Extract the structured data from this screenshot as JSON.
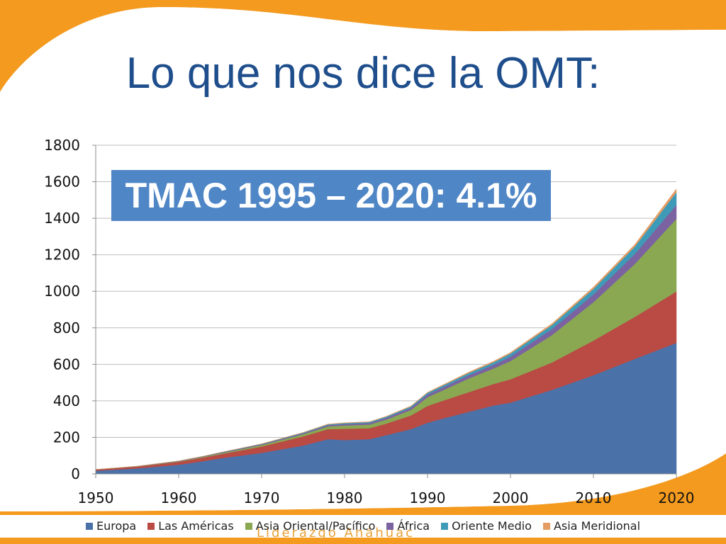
{
  "title": "Lo que nos dice la OMT:",
  "callout": "TMAC 1995 – 2020: 4.1%",
  "watermark": "Liderazgo Anáhuac",
  "colors": {
    "orange": "#f39a1f",
    "title_blue": "#1f4e8c",
    "callout_bg": "#4f86c6"
  },
  "chart_data": {
    "type": "area",
    "stacked": true,
    "title": "",
    "xlabel": "",
    "ylabel": "",
    "xlim": [
      1950,
      2020
    ],
    "ylim": [
      0,
      1800
    ],
    "x_ticks": [
      "1950",
      "1960",
      "1970",
      "1980",
      "1990",
      "2000",
      "2010",
      "2020"
    ],
    "y_ticks": [
      "0",
      "200",
      "400",
      "600",
      "800",
      "1000",
      "1200",
      "1400",
      "1600",
      "1800"
    ],
    "grid": true,
    "legend_position": "bottom",
    "x": [
      1950,
      1955,
      1960,
      1963,
      1965,
      1970,
      1975,
      1978,
      1980,
      1983,
      1985,
      1988,
      1990,
      1992,
      1995,
      1998,
      2000,
      2005,
      2010,
      2015,
      2020
    ],
    "series": [
      {
        "name": "Europa",
        "color": "#4a72a9",
        "values": [
          17,
          30,
          50,
          70,
          85,
          115,
          155,
          190,
          185,
          190,
          212,
          245,
          280,
          305,
          340,
          375,
          390,
          460,
          540,
          630,
          717
        ]
      },
      {
        "name": "Las Américas",
        "color": "#b94a44",
        "values": [
          7,
          10,
          16,
          20,
          22,
          35,
          50,
          55,
          62,
          60,
          63,
          75,
          92,
          98,
          108,
          118,
          128,
          150,
          190,
          230,
          282
        ]
      },
      {
        "name": "Asia Oriental/Pacífico",
        "color": "#8aa851",
        "values": [
          0,
          1,
          2,
          4,
          5,
          8,
          12,
          15,
          18,
          20,
          22,
          30,
          48,
          58,
          75,
          85,
          100,
          150,
          210,
          290,
          397
        ]
      },
      {
        "name": "África",
        "color": "#7a63a0",
        "values": [
          0,
          1,
          2,
          2,
          3,
          4,
          6,
          7,
          8,
          9,
          10,
          12,
          15,
          16,
          18,
          20,
          24,
          33,
          43,
          55,
          77
        ]
      },
      {
        "name": "Oriente Medio",
        "color": "#3e9bb8",
        "values": [
          0,
          0,
          1,
          1,
          2,
          2,
          3,
          4,
          5,
          5,
          6,
          7,
          9,
          10,
          12,
          14,
          17,
          22,
          30,
          40,
          69
        ]
      },
      {
        "name": "Asia Meridional",
        "color": "#e49c62",
        "values": [
          0,
          0,
          0,
          0,
          0,
          1,
          1,
          2,
          2,
          2,
          2,
          3,
          3,
          4,
          5,
          6,
          6,
          8,
          10,
          12,
          19
        ]
      }
    ]
  }
}
